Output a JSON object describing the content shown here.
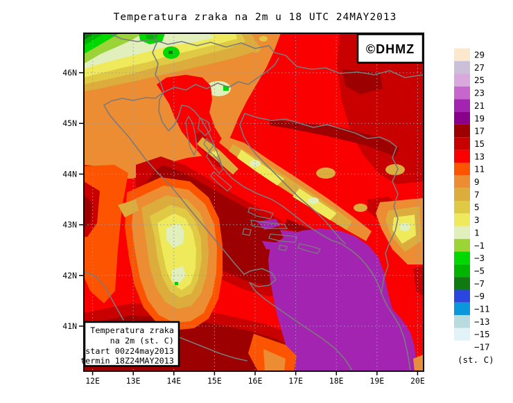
{
  "title": "Temperatura zraka na 2m u 18 UTC 24MAY2013",
  "watermark": {
    "label": "©DHMZ"
  },
  "info_box": {
    "lines": [
      "Temperatura zraka",
      "na 2m (st. C)",
      "start 00z24may2013",
      "termin 18Z24MAY2013"
    ]
  },
  "axes": {
    "lat_labels": [
      "46N",
      "45N",
      "44N",
      "43N",
      "42N",
      "41N"
    ],
    "lon_labels": [
      "12E",
      "13E",
      "14E",
      "15E",
      "16E",
      "17E",
      "18E",
      "19E",
      "20E"
    ]
  },
  "legend": {
    "unit_label": "(st. C)",
    "entries": [
      {
        "label": "29",
        "color": "#FCE8CD"
      },
      {
        "label": "27",
        "color": "#CBC0DA"
      },
      {
        "label": "25",
        "color": "#D9A8DC"
      },
      {
        "label": "23",
        "color": "#C767CE"
      },
      {
        "label": "21",
        "color": "#A424B2"
      },
      {
        "label": "19",
        "color": "#8B008B"
      },
      {
        "label": "17",
        "color": "#9C0000"
      },
      {
        "label": "15",
        "color": "#C80000"
      },
      {
        "label": "13",
        "color": "#FB0000"
      },
      {
        "label": "11",
        "color": "#FC5400"
      },
      {
        "label": "9",
        "color": "#EC8C33"
      },
      {
        "label": "7",
        "color": "#DCAC3C"
      },
      {
        "label": "5",
        "color": "#DFC945"
      },
      {
        "label": "3",
        "color": "#EFE95C"
      },
      {
        "label": "1",
        "color": "#E0EFBC"
      },
      {
        "label": "−1",
        "color": "#9CD438"
      },
      {
        "label": "−3",
        "color": "#00D800"
      },
      {
        "label": "−5",
        "color": "#00B400"
      },
      {
        "label": "−7",
        "color": "#0F7A0F"
      },
      {
        "label": "−9",
        "color": "#2A46DE"
      },
      {
        "label": "−11",
        "color": "#0A97DC"
      },
      {
        "label": "−13",
        "color": "#B8DBE0"
      },
      {
        "label": "−15",
        "color": "#E1F3F6"
      },
      {
        "label": "−17",
        "color": "#FFFFFF"
      }
    ]
  },
  "colors": {
    "maroon": "#9C0000",
    "dark_red": "#C80000",
    "red": "#FB0000",
    "orange_red": "#FC5400",
    "orange": "#EC8C33",
    "gold": "#DCAC3C",
    "dark_yellow": "#DFC945",
    "yellow": "#EFE95C",
    "pale_yellow": "#E0EFBC",
    "yellow_green": "#9CD438",
    "bright_green": "#00D800",
    "green": "#00B400",
    "dark_green": "#0F7A0F",
    "purple": "#A424B2",
    "dark_magenta": "#8B008B",
    "border_gray": "#7b7b7b",
    "grid_gray": "#93a0b0",
    "frame_black": "#000000",
    "dhmz_blue": "#2222DD",
    "background": "#ffffff"
  }
}
